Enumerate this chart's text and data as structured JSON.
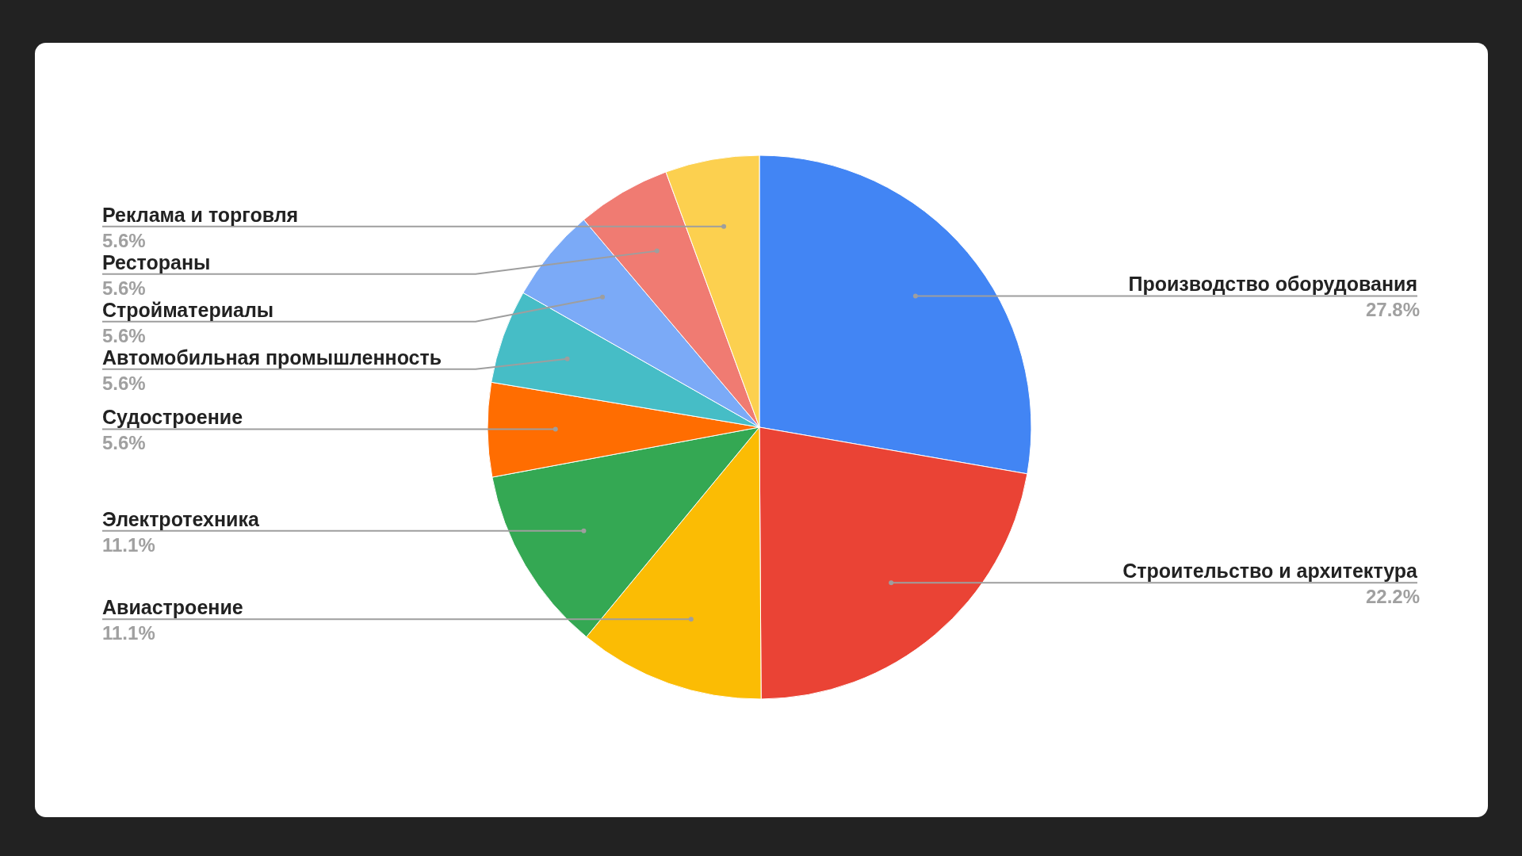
{
  "chart_data": {
    "type": "pie",
    "categories": [
      "Производство оборудования",
      "Строительство и архитектура",
      "Авиастроение",
      "Электротехника",
      "Судостроение",
      "Автомобильная промышленность",
      "Стройматериалы",
      "Рестораны",
      "Реклама и торговля"
    ],
    "values": [
      27.8,
      22.2,
      11.1,
      11.1,
      5.6,
      5.6,
      5.6,
      5.6,
      5.6
    ],
    "value_labels": [
      "27.8%",
      "22.2%",
      "11.1%",
      "11.1%",
      "5.6%",
      "5.6%",
      "5.6%",
      "5.6%",
      "5.6%"
    ],
    "colors": [
      "#4285f4",
      "#ea4335",
      "#fbbc04",
      "#34a853",
      "#ff6d01",
      "#46bdc6",
      "#7baaf7",
      "#f07b72",
      "#fcd04f"
    ],
    "legend": false
  }
}
